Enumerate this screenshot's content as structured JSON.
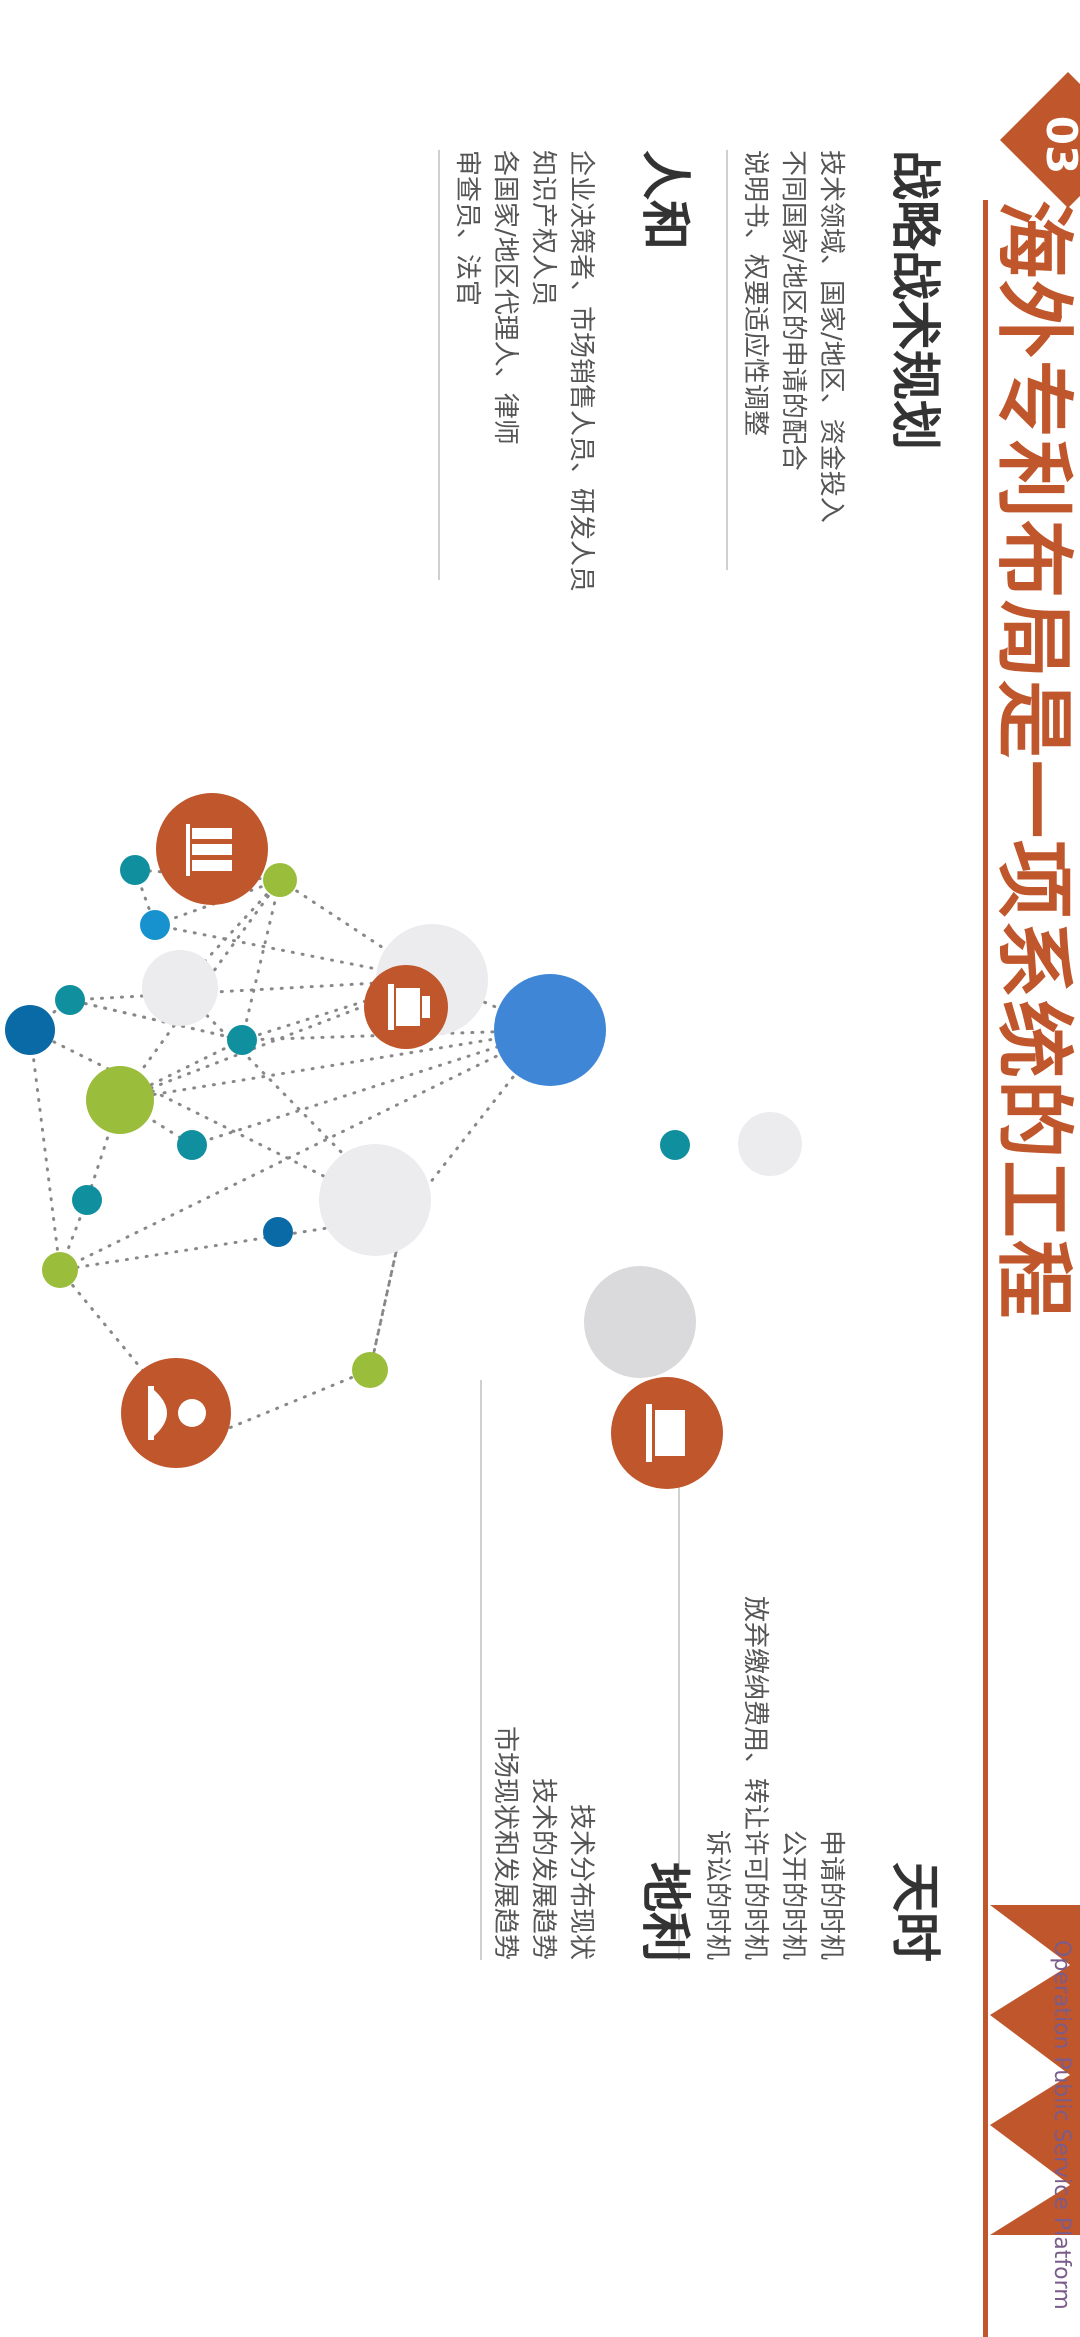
{
  "slide": {
    "number": "03",
    "title": "海外专利布局是一项系统的工程",
    "footer_text": "Operation Public Service Platform"
  },
  "sections": {
    "strategy": {
      "heading": "战略战术规划",
      "lines": [
        "技术领域、国家/地区、资金投入",
        "不同国家/地区的申请的配合",
        "说明书、权要适应性调整"
      ]
    },
    "people": {
      "heading": "人和",
      "lines": [
        "企业决策者、市场销售人员、研发人员",
        "知识产权人员",
        "各国家/地区代理人、律师",
        "审查员、法官"
      ]
    },
    "timing": {
      "heading": "天时",
      "lines": [
        "申请的时机",
        "公开的时机",
        "放弃缴纳费用、转让许可的时机",
        "诉讼的时机"
      ]
    },
    "location": {
      "heading": "地利",
      "lines": [
        "技术分布现状",
        "技术的发展趋势",
        "市场现状和发展趋势"
      ]
    }
  },
  "icons": [
    "books-icon",
    "cash-register-icon",
    "businessman-icon",
    "laptop-icon"
  ],
  "colors": {
    "brand": "#c0562b",
    "blue": "#3f86d6",
    "green": "#9bbd3c",
    "teal": "#10909e",
    "navy": "#0a6aa6",
    "light": "#ececef"
  }
}
